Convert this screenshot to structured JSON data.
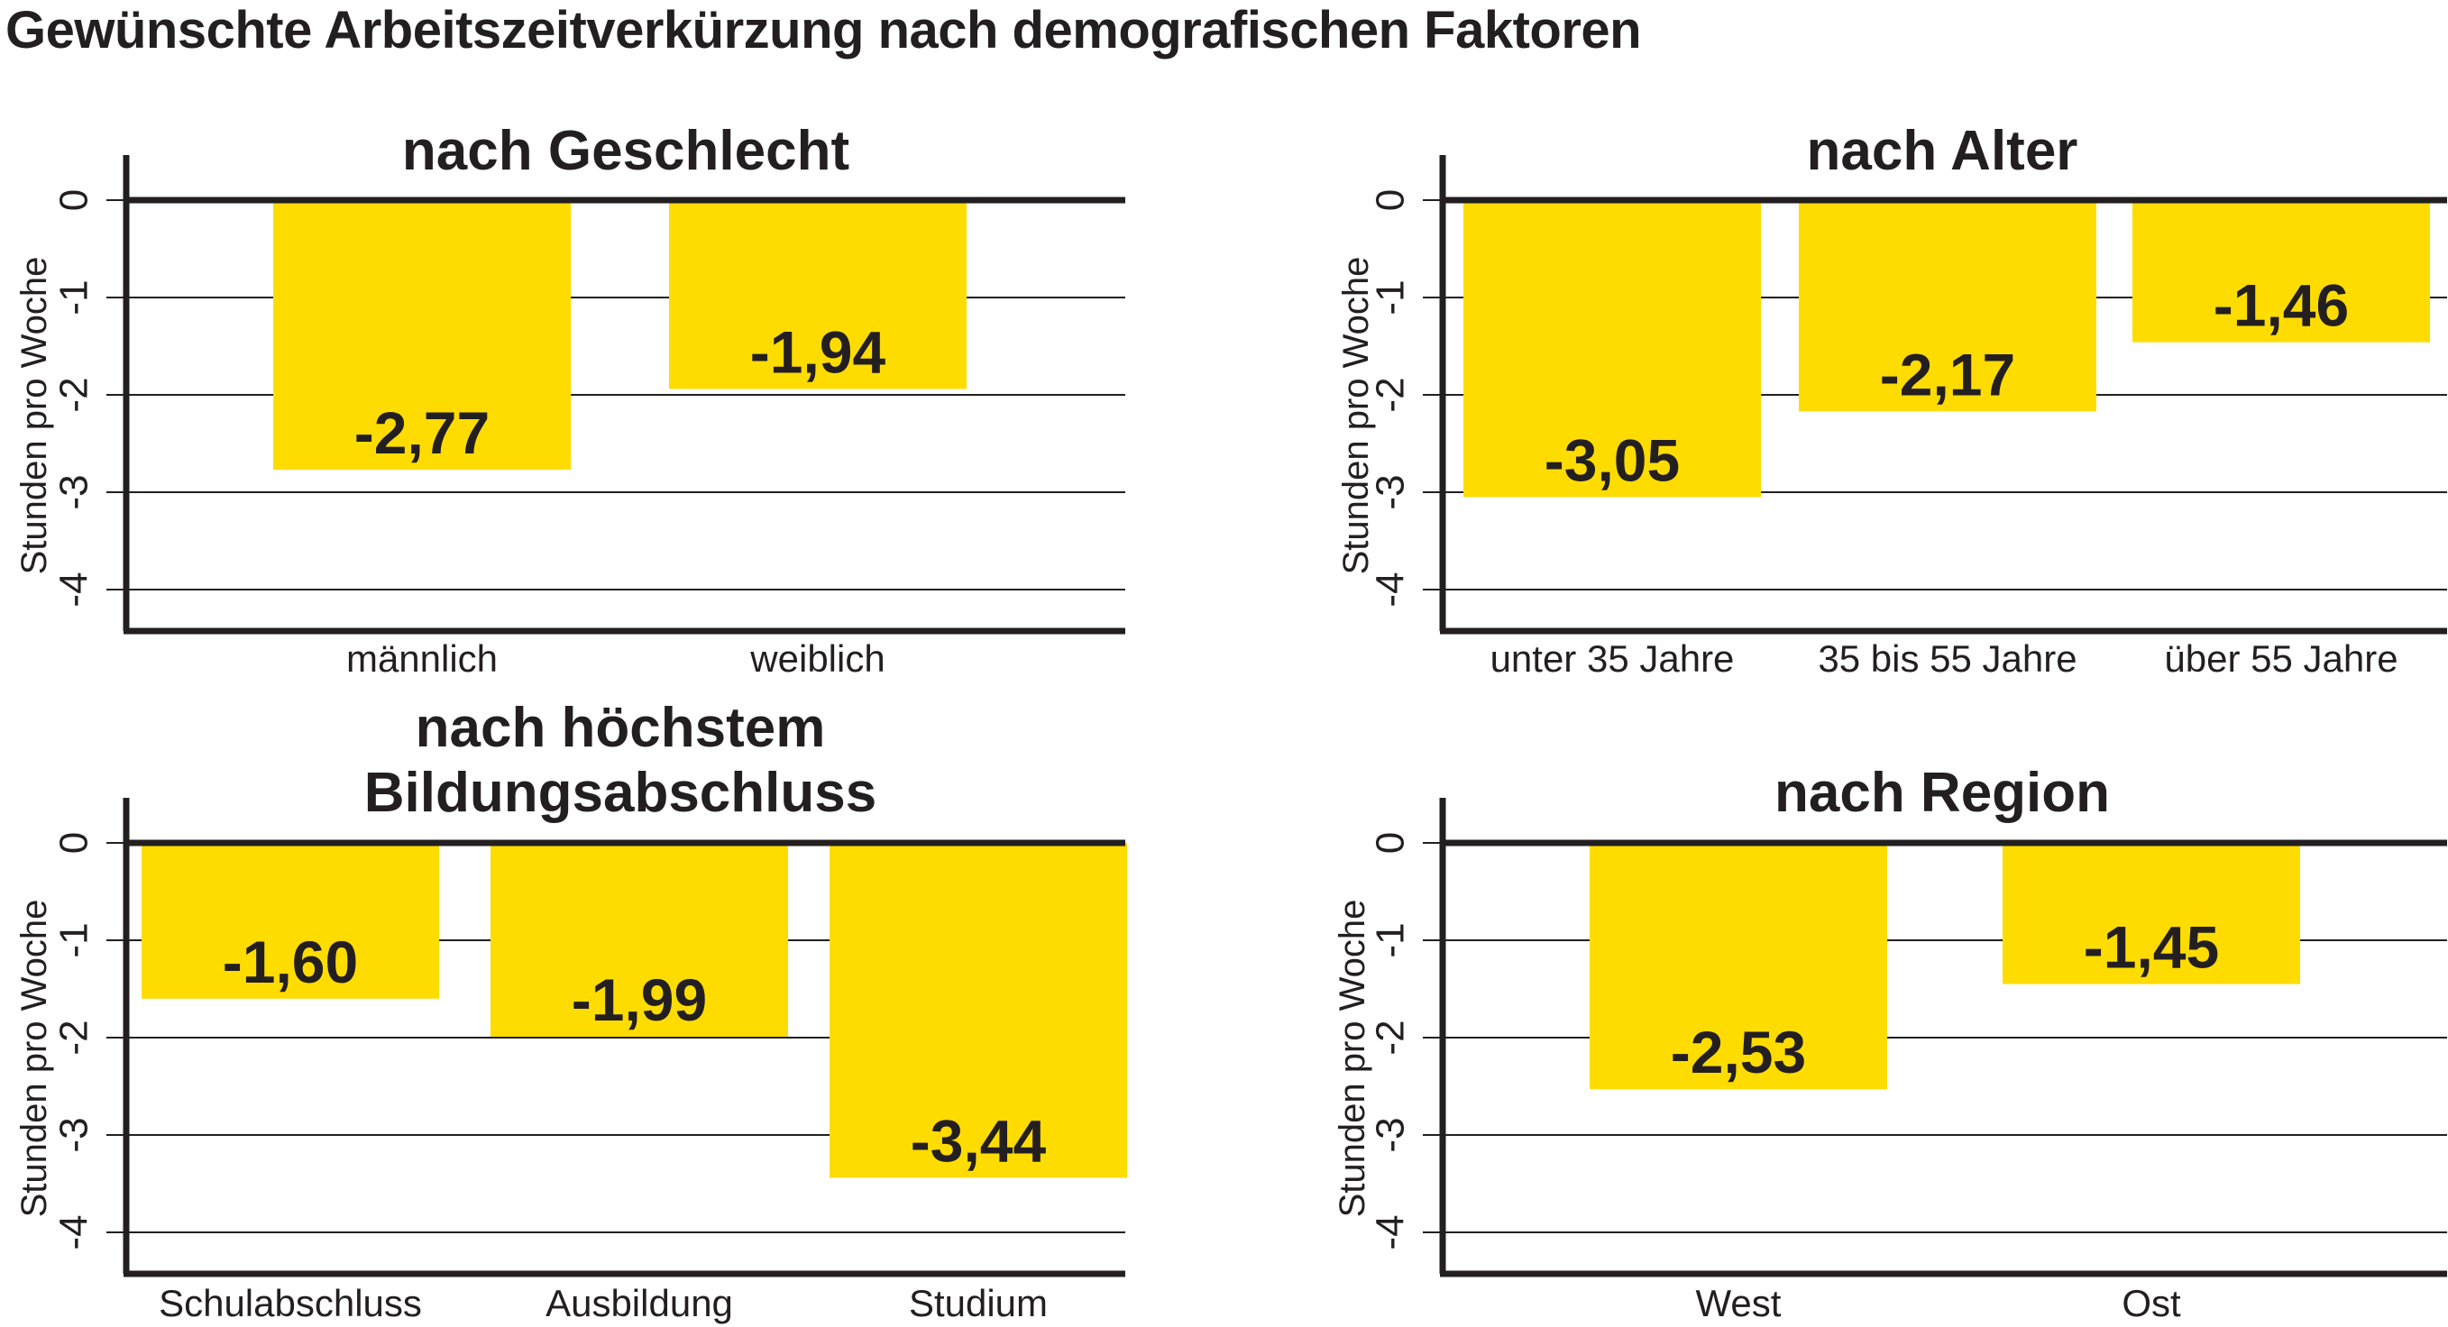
{
  "title": "Gewünschte Arbeitszeitverkürzung nach demografischen Faktoren",
  "colors": {
    "bar": "#ffdc00",
    "axis": "#231f20",
    "grid": "#231f20"
  },
  "chart_data": [
    {
      "type": "bar",
      "title_lines": [
        "nach Geschlecht"
      ],
      "ylabel": "Stunden pro Woche",
      "ylim": [
        -4.4,
        0
      ],
      "yticks": [
        0,
        -1,
        -2,
        -3,
        -4
      ],
      "ytick_labels": [
        "0",
        "-1",
        "-2",
        "-3",
        "-4"
      ],
      "grid": true,
      "categories": [
        "männlich",
        "weiblich"
      ],
      "values": [
        -2.77,
        -1.94
      ],
      "value_labels": [
        "-2,77",
        "-1,94"
      ]
    },
    {
      "type": "bar",
      "title_lines": [
        "nach Alter"
      ],
      "ylabel": "Stunden pro Woche",
      "ylim": [
        -4.4,
        0
      ],
      "yticks": [
        0,
        -1,
        -2,
        -3,
        -4
      ],
      "ytick_labels": [
        "0",
        "-1",
        "-2",
        "-3",
        "-4"
      ],
      "grid": true,
      "categories": [
        "unter 35 Jahre",
        "35 bis 55 Jahre",
        "über 55 Jahre"
      ],
      "values": [
        -3.05,
        -2.17,
        -1.46
      ],
      "value_labels": [
        "-3,05",
        "-2,17",
        "-1,46"
      ]
    },
    {
      "type": "bar",
      "title_lines": [
        "nach höchstem",
        "Bildungsabschluss"
      ],
      "ylabel": "Stunden pro Woche",
      "ylim": [
        -4.4,
        0
      ],
      "yticks": [
        0,
        -1,
        -2,
        -3,
        -4
      ],
      "ytick_labels": [
        "0",
        "-1",
        "-2",
        "-3",
        "-4"
      ],
      "grid": true,
      "categories": [
        "Schulabschluss",
        "Ausbildung",
        "Studium"
      ],
      "values": [
        -1.6,
        -1.99,
        -3.44
      ],
      "value_labels": [
        "-1,60",
        "-1,99",
        "-3,44"
      ]
    },
    {
      "type": "bar",
      "title_lines": [
        "nach Region"
      ],
      "ylabel": "Stunden pro Woche",
      "ylim": [
        -4.4,
        0
      ],
      "yticks": [
        0,
        -1,
        -2,
        -3,
        -4
      ],
      "ytick_labels": [
        "0",
        "-1",
        "-2",
        "-3",
        "-4"
      ],
      "grid": true,
      "categories": [
        "West",
        "Ost"
      ],
      "values": [
        -2.53,
        -1.45
      ],
      "value_labels": [
        "-2,53",
        "-1,45"
      ]
    }
  ]
}
